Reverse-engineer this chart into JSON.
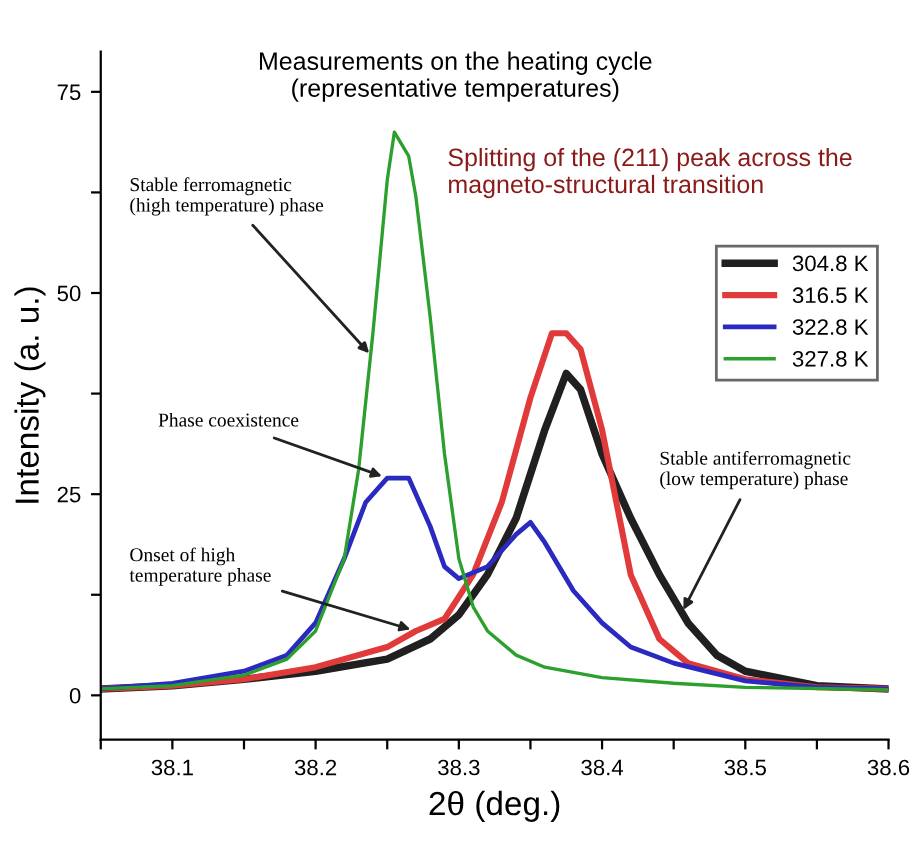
{
  "chart_data": {
    "type": "line",
    "title": "Measurements on the heating cycle\n(representative temperatures)",
    "subtitle": "Splitting of the (211) peak across the\nmagneto-structural transition",
    "xlabel": "2θ (deg.)",
    "ylabel": "Intensity (a. u.)",
    "xlim": [
      38.05,
      38.6
    ],
    "ylim": [
      -5.5,
      80
    ],
    "xticks": [
      {
        "value": 38.05,
        "label": null
      },
      38.1,
      {
        "value": 38.15,
        "label": null
      },
      38.2,
      {
        "value": 38.25,
        "label": null
      },
      38.3,
      {
        "value": 38.35,
        "label": null
      },
      38.4,
      {
        "value": 38.45,
        "label": null
      },
      38.5,
      {
        "value": 38.55,
        "label": null
      },
      38.6
    ],
    "yticks": [
      0,
      {
        "value": 12.5,
        "label": null
      },
      25,
      {
        "value": 37.5,
        "label": null
      },
      50,
      {
        "value": 62.5,
        "label": null
      },
      75
    ],
    "legend": "right",
    "grid": false,
    "marker": "none",
    "line_style": "solid",
    "series": [
      {
        "name": "304.8 K",
        "color": "#202020",
        "x": [
          38.05,
          38.1,
          38.15,
          38.2,
          38.25,
          38.28,
          38.3,
          38.32,
          38.34,
          38.36,
          38.375,
          38.385,
          38.4,
          38.42,
          38.44,
          38.46,
          38.48,
          38.5,
          38.55,
          38.6
        ],
        "values": [
          0.8,
          1.2,
          2,
          3,
          4.5,
          7,
          10,
          15,
          22,
          33,
          40,
          38,
          30,
          22,
          15,
          9,
          5,
          3,
          1.2,
          0.8
        ]
      },
      {
        "name": "316.5 K",
        "color": "#e03a3a",
        "x": [
          38.05,
          38.1,
          38.15,
          38.2,
          38.25,
          38.27,
          38.29,
          38.31,
          38.33,
          38.35,
          38.365,
          38.375,
          38.385,
          38.4,
          38.42,
          38.44,
          38.46,
          38.5,
          38.55,
          38.6
        ],
        "values": [
          0.8,
          1.2,
          2,
          3.5,
          6,
          8,
          9.5,
          15,
          24,
          37,
          45,
          45,
          43,
          33,
          15,
          7,
          4,
          2,
          1.0,
          0.8
        ]
      },
      {
        "name": "322.8 K",
        "color": "#2a2ac0",
        "x": [
          38.05,
          38.1,
          38.15,
          38.18,
          38.2,
          38.22,
          38.235,
          38.25,
          38.265,
          38.28,
          38.29,
          38.3,
          38.32,
          38.34,
          38.35,
          38.36,
          38.38,
          38.4,
          38.42,
          38.45,
          38.5,
          38.55,
          38.6
        ],
        "values": [
          0.8,
          1.5,
          3,
          5,
          9,
          17,
          24,
          27,
          27,
          21,
          16,
          14.5,
          16,
          20,
          21.5,
          19,
          13,
          9,
          6,
          4,
          1.8,
          1.0,
          0.8
        ]
      },
      {
        "name": "327.8 K",
        "color": "#2ca02c",
        "x": [
          38.05,
          38.1,
          38.15,
          38.18,
          38.2,
          38.22,
          38.23,
          38.24,
          38.25,
          38.255,
          38.265,
          38.27,
          38.28,
          38.29,
          38.3,
          38.31,
          38.32,
          38.34,
          38.36,
          38.4,
          38.45,
          38.5,
          38.6
        ],
        "values": [
          0.8,
          1.2,
          2.5,
          4.5,
          8,
          17,
          28,
          45,
          64,
          70,
          67,
          62,
          47,
          30,
          17,
          11,
          8,
          5,
          3.5,
          2.2,
          1.5,
          1.0,
          0.7
        ]
      }
    ],
    "annotations": [
      {
        "text": "Stable ferromagnetic\n(high temperature) phase",
        "x": 38.24,
        "y": 42
      },
      {
        "text": "Phase coexistence",
        "x": 38.25,
        "y": 27
      },
      {
        "text": "Onset of high\ntemperature phase",
        "x": 38.27,
        "y": 8
      },
      {
        "text": "Stable antiferromagnetic\n(low temperature) phase",
        "x": 38.455,
        "y": 10
      }
    ]
  }
}
